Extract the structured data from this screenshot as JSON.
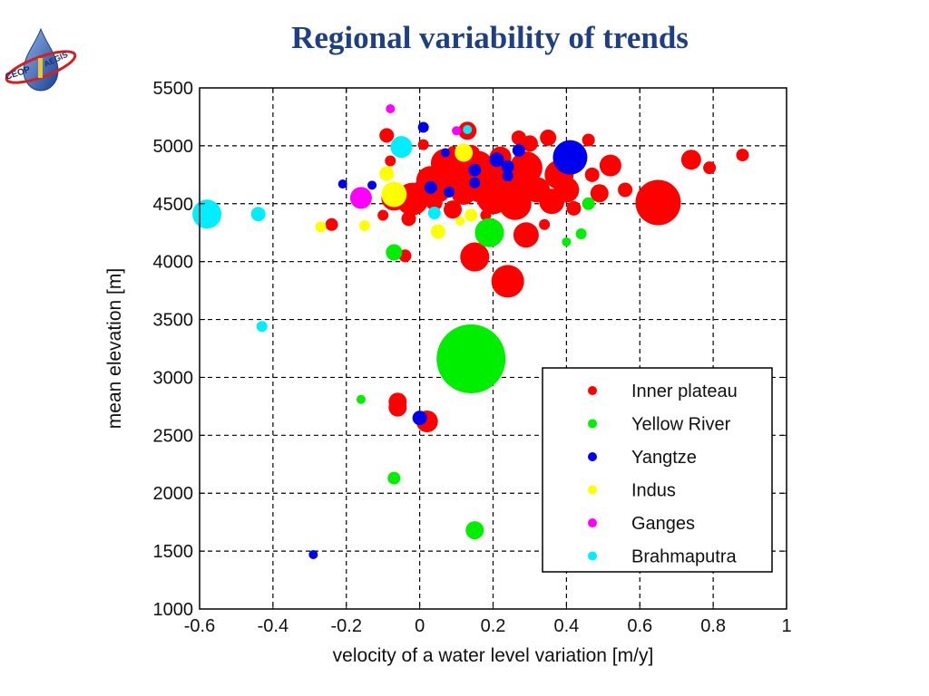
{
  "slide": {
    "title": "Regional variability of trends",
    "logo_text_left": "CEOP",
    "logo_text_right": "AEGIS"
  },
  "chart_data": {
    "type": "scatter",
    "title": "",
    "xlabel": "velocity of a water level variation [m/y]",
    "ylabel": "mean elevation [m]",
    "xlim": [
      -0.6,
      1
    ],
    "ylim": [
      1000,
      5500
    ],
    "xticks": [
      -0.6,
      -0.4,
      -0.2,
      0,
      0.2,
      0.4,
      0.6,
      0.8,
      1
    ],
    "xtick_labels": [
      "-0.6",
      "-0.4",
      "-0.2",
      "0",
      "0.2",
      "0.4",
      "0.6",
      "0.8",
      "1"
    ],
    "yticks": [
      1000,
      1500,
      2000,
      2500,
      3000,
      3500,
      4000,
      4500,
      5000,
      5500
    ],
    "ytick_labels": [
      "1000",
      "1500",
      "2000",
      "2500",
      "3000",
      "3500",
      "4000",
      "4500",
      "5000",
      "5500"
    ],
    "grid": true,
    "legend_position": "bottom-right",
    "series": [
      {
        "name": "Inner plateau",
        "color": "#ff0000",
        "points": [
          [
            -0.24,
            4320,
            7
          ],
          [
            -0.1,
            4400,
            6
          ],
          [
            -0.09,
            5090,
            8
          ],
          [
            -0.08,
            4870,
            6
          ],
          [
            -0.07,
            4550,
            14
          ],
          [
            -0.02,
            4540,
            18
          ],
          [
            0.0,
            4580,
            14
          ],
          [
            0.01,
            5010,
            6
          ],
          [
            0.03,
            4700,
            16
          ],
          [
            0.05,
            4620,
            14
          ],
          [
            0.07,
            4850,
            16
          ],
          [
            0.09,
            4450,
            10
          ],
          [
            0.1,
            4740,
            18
          ],
          [
            0.12,
            4600,
            14
          ],
          [
            0.13,
            5130,
            10
          ],
          [
            0.14,
            4930,
            10
          ],
          [
            0.16,
            4830,
            16
          ],
          [
            0.17,
            4680,
            22
          ],
          [
            0.2,
            4550,
            18
          ],
          [
            0.22,
            4780,
            16
          ],
          [
            0.22,
            4900,
            12
          ],
          [
            0.24,
            4700,
            14
          ],
          [
            0.26,
            4500,
            18
          ],
          [
            0.27,
            4640,
            16
          ],
          [
            0.27,
            5070,
            8
          ],
          [
            0.29,
            4810,
            18
          ],
          [
            0.3,
            5020,
            9
          ],
          [
            0.32,
            4620,
            14
          ],
          [
            0.35,
            5070,
            9
          ],
          [
            0.36,
            4520,
            14
          ],
          [
            0.38,
            4750,
            16
          ],
          [
            0.4,
            4620,
            14
          ],
          [
            0.41,
            4950,
            10
          ],
          [
            0.42,
            4460,
            8
          ],
          [
            0.46,
            5050,
            7
          ],
          [
            0.47,
            4750,
            8
          ],
          [
            0.49,
            4590,
            10
          ],
          [
            0.52,
            4830,
            12
          ],
          [
            0.56,
            4620,
            8
          ],
          [
            0.65,
            4510,
            25
          ],
          [
            0.74,
            4880,
            11
          ],
          [
            0.79,
            4810,
            7
          ],
          [
            0.88,
            4920,
            7
          ],
          [
            -0.04,
            4050,
            7
          ],
          [
            0.15,
            4040,
            16
          ],
          [
            0.24,
            3830,
            18
          ],
          [
            0.29,
            4230,
            14
          ],
          [
            -0.06,
            2790,
            10
          ],
          [
            -0.06,
            2740,
            10
          ],
          [
            0.02,
            2620,
            12
          ],
          [
            0.04,
            4510,
            9
          ],
          [
            0.18,
            4400,
            6
          ],
          [
            -0.03,
            4370,
            8
          ],
          [
            0.09,
            4950,
            6
          ],
          [
            0.34,
            4320,
            6
          ]
        ]
      },
      {
        "name": "Yellow River",
        "color": "#00ee00",
        "points": [
          [
            0.14,
            3160,
            38
          ],
          [
            0.19,
            4250,
            16
          ],
          [
            -0.07,
            4080,
            9
          ],
          [
            0.46,
            4500,
            7
          ],
          [
            0.44,
            4240,
            6
          ],
          [
            0.4,
            4170,
            5
          ],
          [
            -0.16,
            2810,
            5
          ],
          [
            -0.07,
            2130,
            7
          ],
          [
            0.15,
            1680,
            10
          ]
        ]
      },
      {
        "name": "Yangtze",
        "color": "#0000ee",
        "points": [
          [
            0.41,
            4900,
            19
          ],
          [
            0.01,
            5160,
            6
          ],
          [
            0.0,
            2650,
            8
          ],
          [
            -0.21,
            4670,
            5
          ],
          [
            -0.13,
            4660,
            5
          ],
          [
            0.03,
            4640,
            7
          ],
          [
            0.08,
            4600,
            6
          ],
          [
            0.15,
            4790,
            7
          ],
          [
            0.21,
            4880,
            8
          ],
          [
            0.24,
            4820,
            7
          ],
          [
            0.27,
            4960,
            7
          ],
          [
            0.15,
            4680,
            6
          ],
          [
            0.24,
            4740,
            6
          ],
          [
            0.07,
            4940,
            5
          ],
          [
            -0.29,
            1470,
            5
          ]
        ]
      },
      {
        "name": "Indus",
        "color": "#ffff00",
        "points": [
          [
            -0.07,
            4580,
            14
          ],
          [
            -0.09,
            4760,
            8
          ],
          [
            -0.27,
            4300,
            6
          ],
          [
            -0.15,
            4310,
            6
          ],
          [
            0.05,
            4260,
            8
          ],
          [
            0.12,
            4940,
            10
          ],
          [
            0.14,
            4400,
            7
          ],
          [
            0.11,
            4350,
            5
          ]
        ]
      },
      {
        "name": "Ganges",
        "color": "#ff00ff",
        "points": [
          [
            -0.16,
            4550,
            12
          ],
          [
            -0.08,
            5320,
            5
          ],
          [
            0.1,
            5130,
            5
          ]
        ]
      },
      {
        "name": "Brahmaputra",
        "color": "#00eeff",
        "points": [
          [
            -0.58,
            4410,
            16
          ],
          [
            -0.44,
            4410,
            8
          ],
          [
            -0.43,
            3440,
            6
          ],
          [
            -0.05,
            4990,
            12
          ],
          [
            0.04,
            4420,
            7
          ],
          [
            0.13,
            5140,
            5
          ]
        ]
      }
    ]
  }
}
